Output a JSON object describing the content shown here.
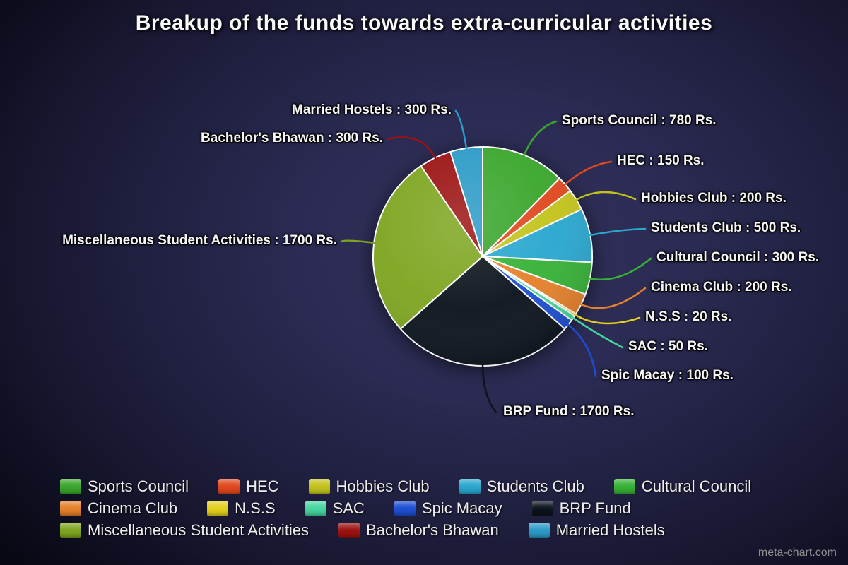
{
  "title": "Breakup of the funds towards extra-curricular activities",
  "watermark": "meta-chart.com",
  "chart_data": {
    "type": "pie",
    "title": "Breakup of the funds towards extra-curricular activities",
    "unit": "Rs.",
    "total": 6300,
    "legend_position": "bottom",
    "label_format": "{label} : {value} Rs.",
    "slices": [
      {
        "label": "Sports Council",
        "value": 780,
        "color": "#3aa62c"
      },
      {
        "label": "HEC",
        "value": 150,
        "color": "#e0481e"
      },
      {
        "label": "Hobbies Club",
        "value": 200,
        "color": "#c3c31c"
      },
      {
        "label": "Students Club",
        "value": 500,
        "color": "#29a7cf"
      },
      {
        "label": "Cultural Council",
        "value": 300,
        "color": "#36b136"
      },
      {
        "label": "Cinema Club",
        "value": 200,
        "color": "#e5802b"
      },
      {
        "label": "N.S.S",
        "value": 20,
        "color": "#e3cf1e"
      },
      {
        "label": "SAC",
        "value": 50,
        "color": "#46d6a0"
      },
      {
        "label": "Spic Macay",
        "value": 100,
        "color": "#1d4ed2"
      },
      {
        "label": "BRP Fund",
        "value": 1700,
        "color": "#0b131c"
      },
      {
        "label": "Miscellaneous Student Activities",
        "value": 1700,
        "color": "#7ea520"
      },
      {
        "label": "Bachelor's Bhawan",
        "value": 300,
        "color": "#9c1212"
      },
      {
        "label": "Married Hostels",
        "value": 300,
        "color": "#2b9ac6"
      }
    ]
  }
}
